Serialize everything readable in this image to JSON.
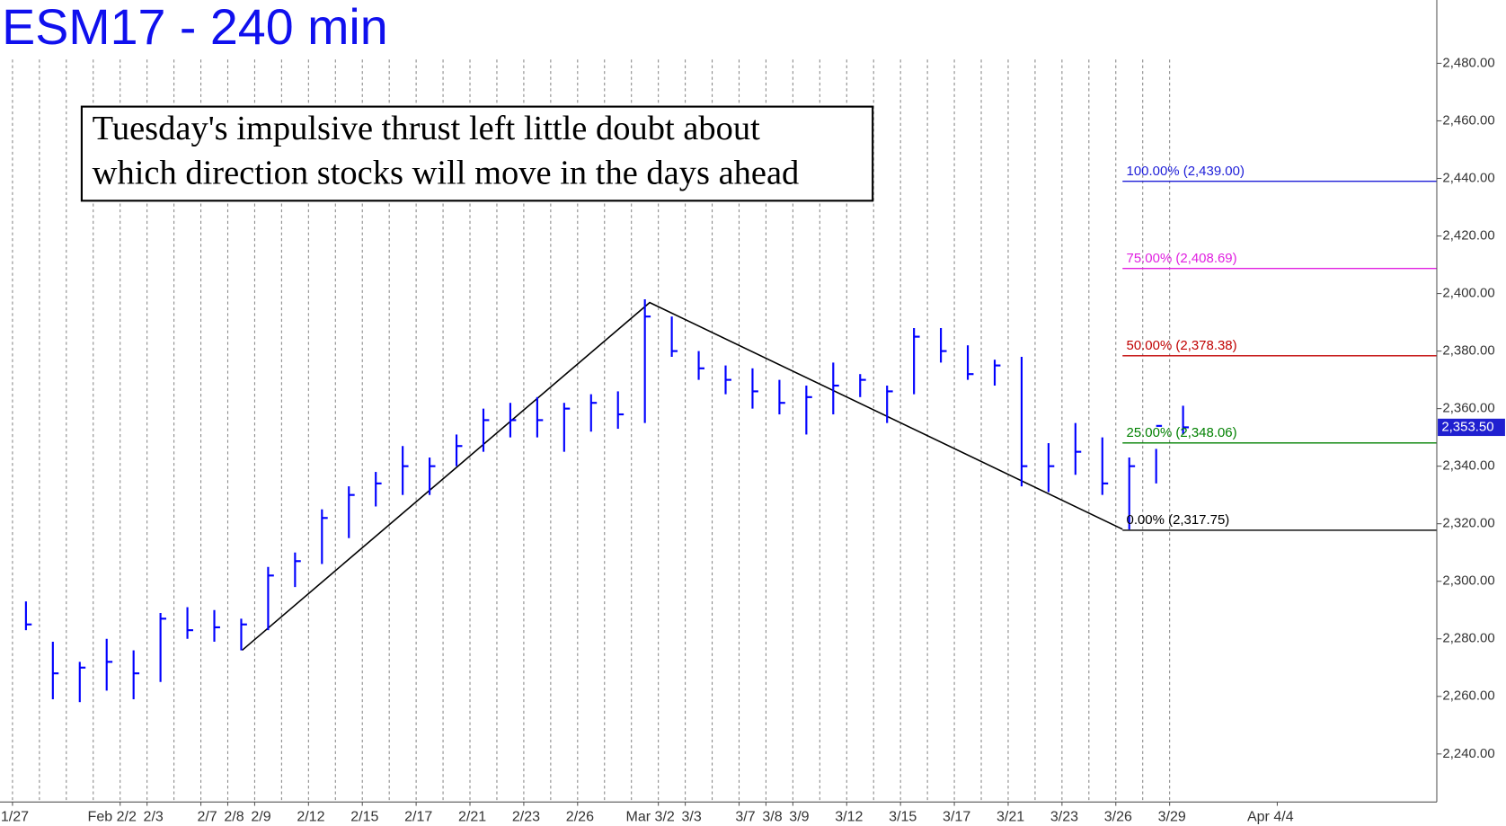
{
  "chart_data": {
    "type": "ohlc",
    "title": "ESM17 - 240 min",
    "annotation": [
      "Tuesday's impulsive thrust left little doubt about",
      "which direction stocks will move in the days ahead"
    ],
    "categories": [
      "1/27",
      null,
      null,
      null,
      "Feb 2/2",
      "2/3",
      null,
      "2/7",
      "2/8",
      "2/9",
      null,
      "2/12",
      null,
      "2/15",
      null,
      "2/17",
      null,
      "2/21",
      null,
      "2/23",
      null,
      "2/26",
      null,
      null,
      "Mar 3/2",
      "3/3",
      null,
      "3/7",
      "3/8",
      "3/9",
      null,
      "3/12",
      null,
      "3/15",
      null,
      "3/17",
      null,
      "3/21",
      null,
      "3/23",
      null,
      "3/26",
      null,
      "3/29",
      null,
      null,
      null,
      "Apr 4/4",
      null,
      null,
      null,
      null,
      null
    ],
    "high": [
      2293,
      2279,
      2272,
      2280,
      2276,
      2289,
      2291,
      2290,
      2287,
      2305,
      2310,
      2325,
      2333,
      2338,
      2347,
      2343,
      2351,
      2360,
      2362,
      2364,
      2362,
      2365,
      2366,
      2398,
      2392,
      2380,
      2375,
      2374,
      2370,
      2368,
      2376,
      2372,
      2368,
      2388,
      2388,
      2382,
      2377,
      2378,
      2348,
      2355,
      2350,
      2343,
      2346,
      2361,
      null,
      null,
      null,
      null,
      null,
      null,
      null,
      null,
      null
    ],
    "low": [
      2283,
      2259,
      2258,
      2262,
      2259,
      2265,
      2280,
      2279,
      2276,
      2283,
      2298,
      2306,
      2315,
      2326,
      2330,
      2330,
      2340,
      2345,
      2350,
      2350,
      2345,
      2352,
      2353,
      2355,
      2378,
      2370,
      2365,
      2360,
      2358,
      2351,
      2358,
      2364,
      2355,
      2365,
      2376,
      2370,
      2368,
      2333,
      2331,
      2337,
      2330,
      2318,
      2334,
      2351,
      null,
      null,
      null,
      null,
      null,
      null,
      null,
      null,
      null
    ],
    "close": [
      2285,
      2268,
      2270,
      2272,
      2268,
      2287,
      2283,
      2284,
      2285,
      2302,
      2307,
      2322,
      2330,
      2334,
      2340,
      2340,
      2347,
      2356,
      2356,
      2356,
      2360,
      2362,
      2358,
      2392,
      2380,
      2374,
      2370,
      2366,
      2362,
      2364,
      2368,
      2370,
      2366,
      2385,
      2380,
      2372,
      2375,
      2340,
      2340,
      2345,
      2334,
      2340,
      2354,
      2353.5,
      null,
      null,
      null,
      null,
      null,
      null,
      null,
      null,
      null
    ],
    "color": "#0000ff",
    "ylim": [
      2223.3,
      2502
    ],
    "yticks": [
      {
        "value": 2240,
        "label": "2,240.00"
      },
      {
        "value": 2260,
        "label": "2,260.00"
      },
      {
        "value": 2280,
        "label": "2,280.00"
      },
      {
        "value": 2300,
        "label": "2,300.00"
      },
      {
        "value": 2320,
        "label": "2,320.00"
      },
      {
        "value": 2340,
        "label": "2,340.00"
      },
      {
        "value": 2360,
        "label": "2,360.00"
      },
      {
        "value": 2380,
        "label": "2,380.00"
      },
      {
        "value": 2400,
        "label": "2,400.00"
      },
      {
        "value": 2420,
        "label": "2,420.00"
      },
      {
        "value": 2440,
        "label": "2,440.00"
      },
      {
        "value": 2460,
        "label": "2,460.00"
      },
      {
        "value": 2480,
        "label": "2,480.00"
      }
    ],
    "grid": true,
    "fib_levels": [
      {
        "value": 2439.0,
        "label": "100.00% (2,439.00)",
        "color": "#1c1cd8"
      },
      {
        "value": 2408.69,
        "label": "75.00% (2,408.69)",
        "color": "#e020e0"
      },
      {
        "value": 2378.38,
        "label": "50.00% (2,378.38)",
        "color": "#c00000"
      },
      {
        "value": 2348.06,
        "label": "25.00% (2,348.06)",
        "color": "#008000"
      },
      {
        "value": 2317.75,
        "label": "0.00% (2,317.75)",
        "color": "#000000"
      }
    ],
    "last_price": {
      "value": 2353.5,
      "label": "2,353.50"
    }
  }
}
